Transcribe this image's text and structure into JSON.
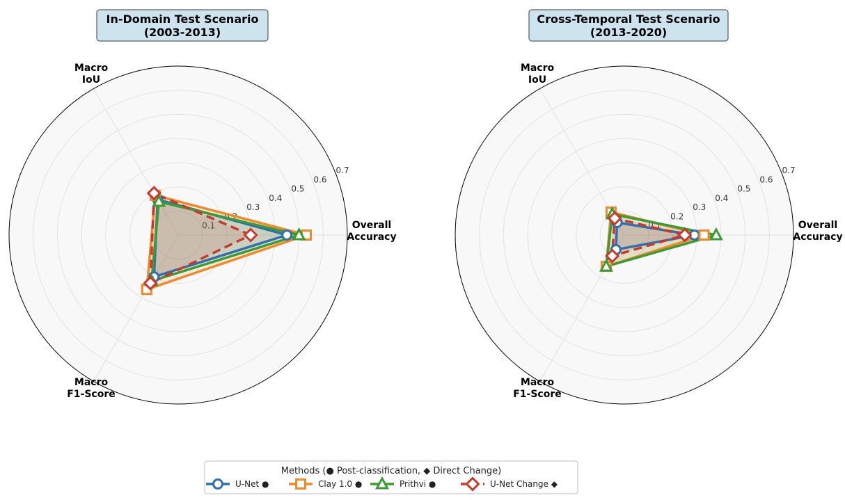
{
  "colors": {
    "unet": "#2f6fb0",
    "clay": "#f0892a",
    "prithvi": "#3c9b34",
    "unet_change": "#c8392b",
    "title_box": "#cde3ee",
    "grid": "#e2e2e2",
    "polar_bg": "#f8f8f8"
  },
  "legend": {
    "title": "Methods (● Post-classification, ◆ Direct Change)",
    "items": [
      {
        "name": "U-Net",
        "suffix": "●",
        "color": "#2f6fb0",
        "marker": "circle",
        "dashed": false
      },
      {
        "name": "Clay 1.0",
        "suffix": "●",
        "color": "#f0892a",
        "marker": "square",
        "dashed": false
      },
      {
        "name": "Prithvi",
        "suffix": "●",
        "color": "#3c9b34",
        "marker": "triangle",
        "dashed": false
      },
      {
        "name": "U-Net Change",
        "suffix": "◆",
        "color": "#c8392b",
        "marker": "diamond",
        "dashed": true
      }
    ]
  },
  "chart_data": [
    {
      "type": "radar",
      "title": "In-Domain Test Scenario",
      "subtitle": "(2003-2013)",
      "axes": [
        "Overall\nAccuracy",
        "Macro\nIoU",
        "Macro\nF1-Score"
      ],
      "rlim": [
        0,
        0.7
      ],
      "ticks": [
        "0.1",
        "0.2",
        "0.3",
        "0.4",
        "0.5",
        "0.6",
        "0.7"
      ],
      "series": [
        {
          "name": "U-Net",
          "values": [
            0.45,
            0.17,
            0.2
          ]
        },
        {
          "name": "Clay 1.0",
          "values": [
            0.53,
            0.19,
            0.26
          ]
        },
        {
          "name": "Prithvi",
          "values": [
            0.5,
            0.16,
            0.22
          ]
        },
        {
          "name": "U-Net Change",
          "values": [
            0.3,
            0.2,
            0.23
          ]
        }
      ]
    },
    {
      "type": "radar",
      "title": "Cross-Temporal Test Scenario",
      "subtitle": "(2013-2020)",
      "axes": [
        "Overall\nAccuracy",
        "Macro\nIoU",
        "Macro\nF1-Score"
      ],
      "rlim": [
        0,
        0.7
      ],
      "ticks": [
        "0.1",
        "0.2",
        "0.3",
        "0.4",
        "0.5",
        "0.6",
        "0.7"
      ],
      "series": [
        {
          "name": "U-Net",
          "values": [
            0.29,
            0.06,
            0.07
          ]
        },
        {
          "name": "Clay 1.0",
          "values": [
            0.33,
            0.11,
            0.15
          ]
        },
        {
          "name": "Prithvi",
          "values": [
            0.38,
            0.1,
            0.15
          ]
        },
        {
          "name": "U-Net Change",
          "values": [
            0.25,
            0.08,
            0.1
          ]
        }
      ]
    }
  ]
}
